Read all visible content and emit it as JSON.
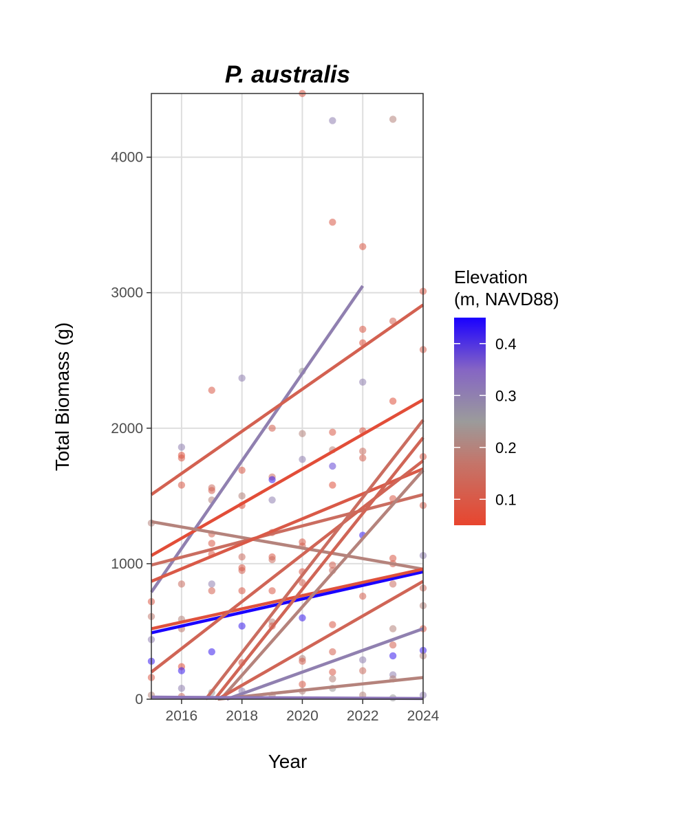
{
  "chart_data": {
    "type": "scatter",
    "title": "P. australis",
    "xlabel": "Year",
    "ylabel": "Total Biomass (g)",
    "xlim": [
      2015,
      2024
    ],
    "ylim": [
      0,
      4470
    ],
    "x_ticks": [
      2016,
      2018,
      2020,
      2022,
      2024
    ],
    "y_ticks": [
      0,
      1000,
      2000,
      3000,
      4000
    ],
    "grid": true,
    "legend": {
      "title_lines": [
        "Elevation",
        "(m, NAVD88)"
      ],
      "position": "right",
      "type": "colorbar",
      "range": [
        0.05,
        0.45
      ],
      "ticks": [
        0.4,
        0.3,
        0.2,
        0.1
      ],
      "tick_labels": [
        "0.4",
        "0.3",
        "0.2",
        "0.1"
      ],
      "colors": {
        "low": "#E8452E",
        "mid": "#9B9B9B",
        "midhigh": "#8565C4",
        "high": "#1A00FF"
      }
    },
    "colors": {
      "grid": "#dedede",
      "panel_border": "#333333",
      "tick_text": "#4d4d4d"
    },
    "points": [
      {
        "x": 2015,
        "y": 1300,
        "z": 0.2
      },
      {
        "x": 2015,
        "y": 720,
        "z": 0.1
      },
      {
        "x": 2015,
        "y": 610,
        "z": 0.18
      },
      {
        "x": 2015,
        "y": 440,
        "z": 0.3
      },
      {
        "x": 2015,
        "y": 280,
        "z": 0.42
      },
      {
        "x": 2015,
        "y": 160,
        "z": 0.1
      },
      {
        "x": 2015,
        "y": 30,
        "z": 0.2
      },
      {
        "x": 2016,
        "y": 1860,
        "z": 0.3
      },
      {
        "x": 2016,
        "y": 1800,
        "z": 0.08
      },
      {
        "x": 2016,
        "y": 1780,
        "z": 0.1
      },
      {
        "x": 2016,
        "y": 1580,
        "z": 0.1
      },
      {
        "x": 2016,
        "y": 850,
        "z": 0.15
      },
      {
        "x": 2016,
        "y": 590,
        "z": 0.2
      },
      {
        "x": 2016,
        "y": 520,
        "z": 0.18
      },
      {
        "x": 2016,
        "y": 240,
        "z": 0.08
      },
      {
        "x": 2016,
        "y": 210,
        "z": 0.42
      },
      {
        "x": 2016,
        "y": 80,
        "z": 0.3
      },
      {
        "x": 2016,
        "y": 20,
        "z": 0.15
      },
      {
        "x": 2017,
        "y": 2280,
        "z": 0.1
      },
      {
        "x": 2017,
        "y": 1560,
        "z": 0.15
      },
      {
        "x": 2017,
        "y": 1540,
        "z": 0.12
      },
      {
        "x": 2017,
        "y": 1470,
        "z": 0.2
      },
      {
        "x": 2017,
        "y": 1220,
        "z": 0.12
      },
      {
        "x": 2017,
        "y": 1150,
        "z": 0.1
      },
      {
        "x": 2017,
        "y": 1070,
        "z": 0.1
      },
      {
        "x": 2017,
        "y": 850,
        "z": 0.3
      },
      {
        "x": 2017,
        "y": 800,
        "z": 0.12
      },
      {
        "x": 2017,
        "y": 350,
        "z": 0.42
      },
      {
        "x": 2017,
        "y": 50,
        "z": 0.25
      },
      {
        "x": 2018,
        "y": 2370,
        "z": 0.3
      },
      {
        "x": 2018,
        "y": 1690,
        "z": 0.1
      },
      {
        "x": 2018,
        "y": 1500,
        "z": 0.2
      },
      {
        "x": 2018,
        "y": 1430,
        "z": 0.08
      },
      {
        "x": 2018,
        "y": 1050,
        "z": 0.15
      },
      {
        "x": 2018,
        "y": 970,
        "z": 0.1
      },
      {
        "x": 2018,
        "y": 950,
        "z": 0.12
      },
      {
        "x": 2018,
        "y": 800,
        "z": 0.1
      },
      {
        "x": 2018,
        "y": 540,
        "z": 0.42
      },
      {
        "x": 2018,
        "y": 270,
        "z": 0.1
      },
      {
        "x": 2018,
        "y": 60,
        "z": 0.3
      },
      {
        "x": 2019,
        "y": 2000,
        "z": 0.12
      },
      {
        "x": 2019,
        "y": 1640,
        "z": 0.15
      },
      {
        "x": 2019,
        "y": 1620,
        "z": 0.42
      },
      {
        "x": 2019,
        "y": 1470,
        "z": 0.3
      },
      {
        "x": 2019,
        "y": 1230,
        "z": 0.12
      },
      {
        "x": 2019,
        "y": 1050,
        "z": 0.1
      },
      {
        "x": 2019,
        "y": 1030,
        "z": 0.15
      },
      {
        "x": 2019,
        "y": 800,
        "z": 0.1
      },
      {
        "x": 2019,
        "y": 570,
        "z": 0.2
      },
      {
        "x": 2019,
        "y": 540,
        "z": 0.12
      },
      {
        "x": 2019,
        "y": 30,
        "z": 0.2
      },
      {
        "x": 2020,
        "y": 4470,
        "z": 0.1
      },
      {
        "x": 2020,
        "y": 2420,
        "z": 0.25
      },
      {
        "x": 2020,
        "y": 1960,
        "z": 0.2
      },
      {
        "x": 2020,
        "y": 1770,
        "z": 0.3
      },
      {
        "x": 2020,
        "y": 1160,
        "z": 0.1
      },
      {
        "x": 2020,
        "y": 1130,
        "z": 0.12
      },
      {
        "x": 2020,
        "y": 940,
        "z": 0.1
      },
      {
        "x": 2020,
        "y": 860,
        "z": 0.12
      },
      {
        "x": 2020,
        "y": 600,
        "z": 0.42
      },
      {
        "x": 2020,
        "y": 300,
        "z": 0.2
      },
      {
        "x": 2020,
        "y": 280,
        "z": 0.12
      },
      {
        "x": 2020,
        "y": 110,
        "z": 0.1
      },
      {
        "x": 2020,
        "y": 60,
        "z": 0.2
      },
      {
        "x": 2021,
        "y": 4270,
        "z": 0.3
      },
      {
        "x": 2021,
        "y": 3520,
        "z": 0.1
      },
      {
        "x": 2021,
        "y": 1970,
        "z": 0.1
      },
      {
        "x": 2021,
        "y": 1840,
        "z": 0.2
      },
      {
        "x": 2021,
        "y": 1720,
        "z": 0.38
      },
      {
        "x": 2021,
        "y": 1580,
        "z": 0.08
      },
      {
        "x": 2021,
        "y": 990,
        "z": 0.12
      },
      {
        "x": 2021,
        "y": 950,
        "z": 0.15
      },
      {
        "x": 2021,
        "y": 550,
        "z": 0.1
      },
      {
        "x": 2021,
        "y": 350,
        "z": 0.12
      },
      {
        "x": 2021,
        "y": 200,
        "z": 0.1
      },
      {
        "x": 2021,
        "y": 150,
        "z": 0.2
      },
      {
        "x": 2021,
        "y": 80,
        "z": 0.25
      },
      {
        "x": 2022,
        "y": 3340,
        "z": 0.1
      },
      {
        "x": 2022,
        "y": 2730,
        "z": 0.1
      },
      {
        "x": 2022,
        "y": 2630,
        "z": 0.08
      },
      {
        "x": 2022,
        "y": 2340,
        "z": 0.3
      },
      {
        "x": 2022,
        "y": 1980,
        "z": 0.1
      },
      {
        "x": 2022,
        "y": 1830,
        "z": 0.15
      },
      {
        "x": 2022,
        "y": 1780,
        "z": 0.12
      },
      {
        "x": 2022,
        "y": 1210,
        "z": 0.42
      },
      {
        "x": 2022,
        "y": 760,
        "z": 0.12
      },
      {
        "x": 2022,
        "y": 290,
        "z": 0.3
      },
      {
        "x": 2022,
        "y": 210,
        "z": 0.15
      },
      {
        "x": 2022,
        "y": 30,
        "z": 0.2
      },
      {
        "x": 2023,
        "y": 4280,
        "z": 0.2
      },
      {
        "x": 2023,
        "y": 2790,
        "z": 0.12
      },
      {
        "x": 2023,
        "y": 2200,
        "z": 0.08
      },
      {
        "x": 2023,
        "y": 1480,
        "z": 0.1
      },
      {
        "x": 2023,
        "y": 1040,
        "z": 0.1
      },
      {
        "x": 2023,
        "y": 1000,
        "z": 0.12
      },
      {
        "x": 2023,
        "y": 850,
        "z": 0.15
      },
      {
        "x": 2023,
        "y": 520,
        "z": 0.2
      },
      {
        "x": 2023,
        "y": 400,
        "z": 0.12
      },
      {
        "x": 2023,
        "y": 320,
        "z": 0.42
      },
      {
        "x": 2023,
        "y": 180,
        "z": 0.3
      },
      {
        "x": 2023,
        "y": 150,
        "z": 0.2
      },
      {
        "x": 2023,
        "y": 10,
        "z": 0.25
      },
      {
        "x": 2024,
        "y": 3010,
        "z": 0.1
      },
      {
        "x": 2024,
        "y": 2580,
        "z": 0.12
      },
      {
        "x": 2024,
        "y": 1790,
        "z": 0.1
      },
      {
        "x": 2024,
        "y": 1430,
        "z": 0.12
      },
      {
        "x": 2024,
        "y": 1060,
        "z": 0.3
      },
      {
        "x": 2024,
        "y": 820,
        "z": 0.15
      },
      {
        "x": 2024,
        "y": 690,
        "z": 0.2
      },
      {
        "x": 2024,
        "y": 520,
        "z": 0.1
      },
      {
        "x": 2024,
        "y": 360,
        "z": 0.42
      },
      {
        "x": 2024,
        "y": 320,
        "z": 0.2
      },
      {
        "x": 2024,
        "y": 30,
        "z": 0.3
      }
    ],
    "trend_lines": [
      {
        "x": [
          2015,
          2022
        ],
        "y": [
          790,
          3050
        ],
        "z": 0.3
      },
      {
        "x": [
          2015,
          2024
        ],
        "y": [
          1510,
          2910
        ],
        "z": 0.12
      },
      {
        "x": [
          2015,
          2024
        ],
        "y": [
          1060,
          2210
        ],
        "z": 0.07
      },
      {
        "x": [
          2015,
          2024
        ],
        "y": [
          1310,
          960
        ],
        "z": 0.2
      },
      {
        "x": [
          2015,
          2024
        ],
        "y": [
          990,
          1510
        ],
        "z": 0.15
      },
      {
        "x": [
          2015,
          2024
        ],
        "y": [
          870,
          1700
        ],
        "z": 0.1
      },
      {
        "x": [
          2015,
          2024
        ],
        "y": [
          490,
          940
        ],
        "z": 0.45
      },
      {
        "x": [
          2015,
          2024
        ],
        "y": [
          520,
          960
        ],
        "z": 0.08
      },
      {
        "x": [
          2015,
          2024
        ],
        "y": [
          200,
          1760
        ],
        "z": 0.13
      },
      {
        "x": [
          2016.8,
          2024
        ],
        "y": [
          0,
          2060
        ],
        "z": 0.15
      },
      {
        "x": [
          2017.1,
          2024
        ],
        "y": [
          0,
          1930
        ],
        "z": 0.13
      },
      {
        "x": [
          2017.3,
          2024
        ],
        "y": [
          0,
          1690
        ],
        "z": 0.2
      },
      {
        "x": [
          2017.2,
          2024
        ],
        "y": [
          0,
          870
        ],
        "z": 0.13
      },
      {
        "x": [
          2017.5,
          2024
        ],
        "y": [
          0,
          520
        ],
        "z": 0.3
      },
      {
        "x": [
          2017.2,
          2024
        ],
        "y": [
          0,
          160
        ],
        "z": 0.2
      },
      {
        "x": [
          2015,
          2024
        ],
        "y": [
          15,
          5
        ],
        "z": 0.32
      }
    ]
  }
}
